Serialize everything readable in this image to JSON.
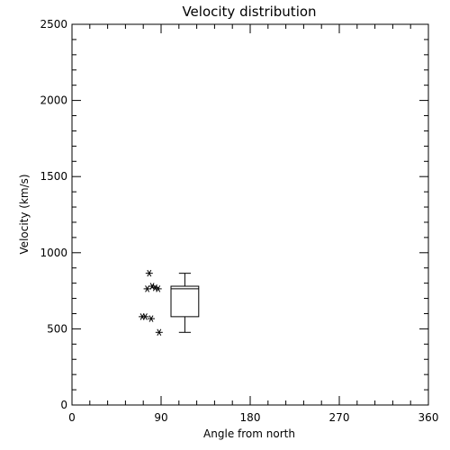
{
  "chart_data": {
    "type": "scatter",
    "title": "Velocity distribution",
    "xlabel": "Angle from north",
    "ylabel": "Velocity (km/s)",
    "xlim": [
      0,
      360
    ],
    "ylim": [
      0,
      2500
    ],
    "x_ticks": [
      0,
      90,
      180,
      270,
      360
    ],
    "x_tick_labels": [
      "0",
      "90",
      "180",
      "270",
      "360"
    ],
    "y_ticks": [
      0,
      500,
      1000,
      1500,
      2000,
      2500
    ],
    "y_tick_labels": [
      "0",
      "500",
      "1000",
      "1500",
      "2000",
      "2500"
    ],
    "grid": false,
    "marker": "asterisk",
    "colors": {
      "foreground": "#000000",
      "background": "#ffffff"
    },
    "points": [
      {
        "x": 78,
        "y": 865
      },
      {
        "x": 76,
        "y": 763
      },
      {
        "x": 81,
        "y": 780
      },
      {
        "x": 84,
        "y": 770
      },
      {
        "x": 87,
        "y": 763
      },
      {
        "x": 71,
        "y": 580
      },
      {
        "x": 74,
        "y": 580
      },
      {
        "x": 80,
        "y": 567
      },
      {
        "x": 88,
        "y": 477
      }
    ],
    "box": {
      "x": 114,
      "half_width": 14,
      "whisker_half_width": 6,
      "min": 477,
      "q1": 580,
      "median": 763,
      "q3": 780,
      "max": 865
    }
  }
}
